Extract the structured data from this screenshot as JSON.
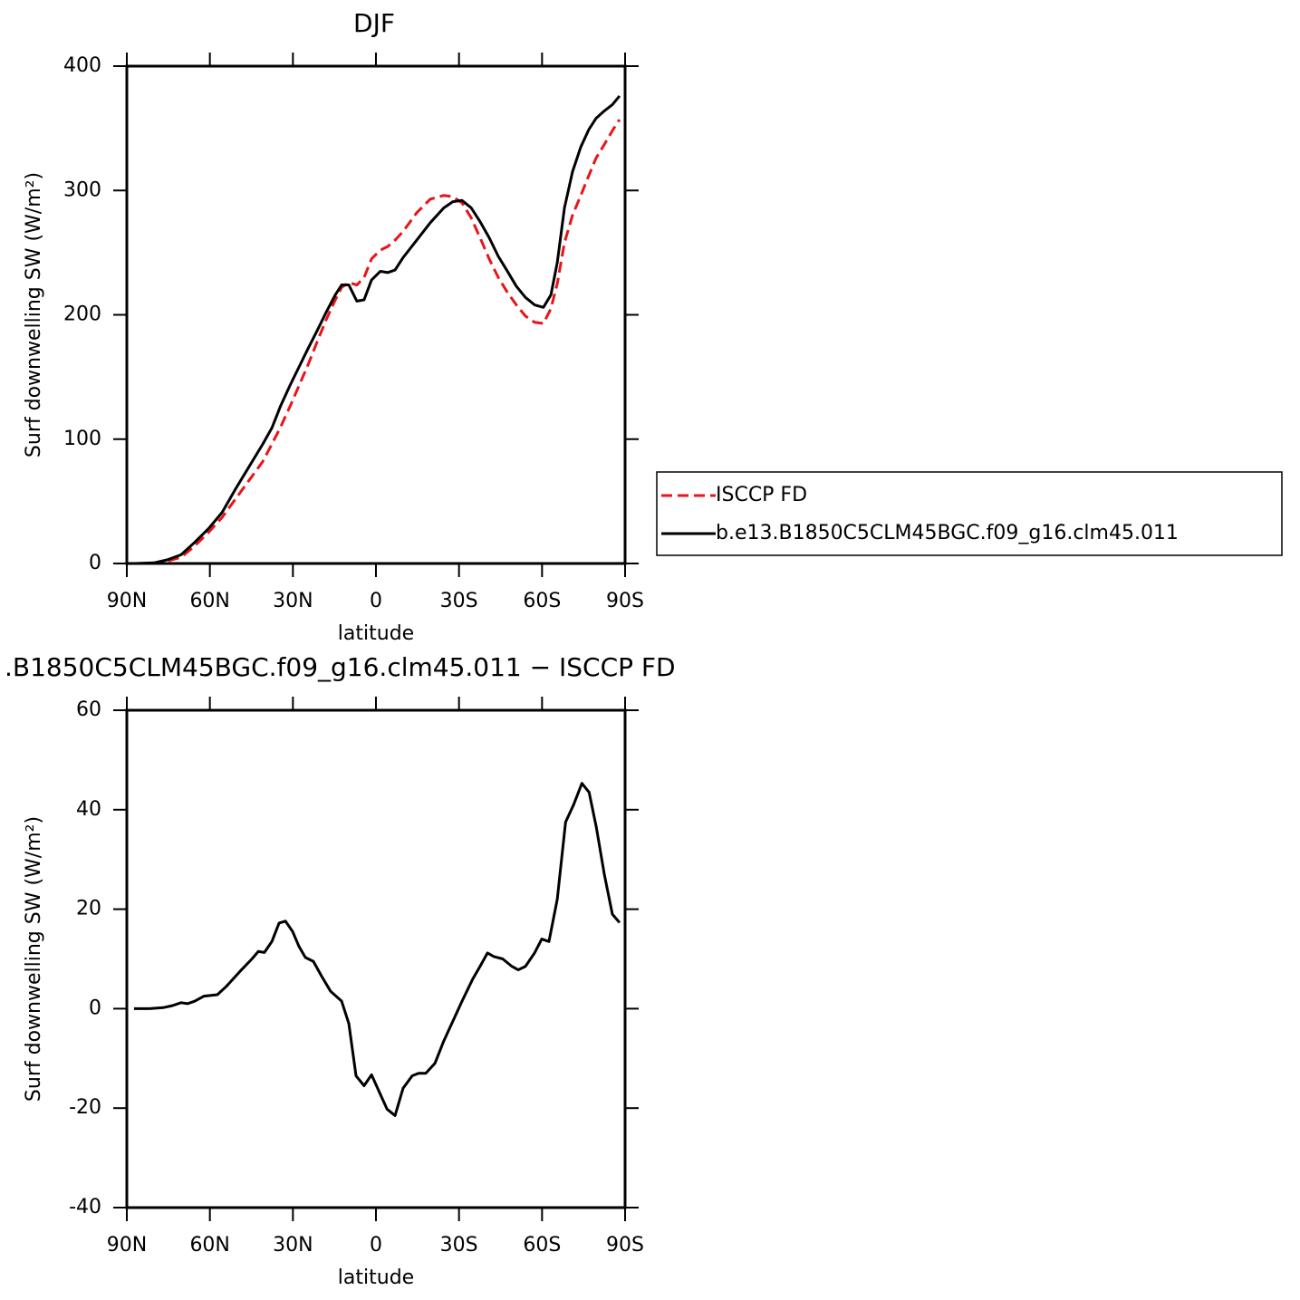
{
  "chart_data": [
    {
      "type": "line",
      "title": "DJF",
      "xlabel": "latitude",
      "ylabel": "Surf downwelling SW (W/m²)",
      "x": [
        86.7,
        80.2,
        75.3,
        70.4,
        65.5,
        60.5,
        55.6,
        50.7,
        45.8,
        40.9,
        37.6,
        34.4,
        31.1,
        27.8,
        24.5,
        21.3,
        18.0,
        14.7,
        12.4,
        9.8,
        6.9,
        4.3,
        1.6,
        -1.6,
        -4.3,
        -6.9,
        -9.8,
        -14.7,
        -19.6,
        -24.5,
        -27.8,
        -31.1,
        -34.4,
        -37.6,
        -40.9,
        -44.2,
        -47.5,
        -50.7,
        -54.0,
        -57.3,
        -60.5,
        -63.2,
        -65.5,
        -68.1,
        -71.0,
        -74.0,
        -76.9,
        -79.5,
        -82.5,
        -85.4,
        -88.0
      ],
      "series": [
        {
          "name": "ISCCP FD",
          "color": "#e8141a",
          "dash": true,
          "values": [
            0,
            0.3,
            2,
            5,
            14,
            25,
            37,
            52,
            67,
            82,
            96,
            110,
            126,
            143,
            160,
            178,
            196,
            212,
            222,
            226,
            224,
            230,
            245,
            252,
            255,
            260,
            267,
            282,
            293,
            296,
            295,
            290,
            278,
            262,
            245,
            230,
            218,
            208,
            199,
            194,
            193,
            205,
            225,
            258,
            280,
            296,
            312,
            326,
            337,
            348,
            357
          ]
        },
        {
          "name": "b.e13.B1850C5CLM45BGC.f09_g16.clm45.011",
          "color": "#000000",
          "dash": false,
          "values": [
            0,
            0.5,
            3,
            7,
            17,
            28,
            41,
            60,
            78,
            96,
            109,
            127,
            143,
            158,
            173,
            187,
            202,
            216,
            224,
            224,
            211,
            212,
            228,
            235,
            234,
            236,
            246,
            260,
            274,
            286,
            291,
            292,
            286,
            275,
            262,
            247,
            235,
            223,
            214,
            208,
            206,
            216,
            242,
            286,
            315,
            335,
            349,
            358,
            364,
            369,
            376
          ]
        }
      ],
      "xlim": [
        90,
        -90
      ],
      "xticks": [
        {
          "value": 90,
          "label": "90N"
        },
        {
          "value": 60,
          "label": "60N"
        },
        {
          "value": 30,
          "label": "30N"
        },
        0,
        {
          "value": -30,
          "label": "30S"
        },
        {
          "value": -60,
          "label": "60S"
        },
        {
          "value": -90,
          "label": "90S"
        }
      ],
      "ylim": [
        0,
        400
      ],
      "yticks": [
        0,
        100,
        200,
        300,
        400
      ],
      "legend": "right"
    },
    {
      "type": "line",
      "title": ".B1850C5CLM45BGC.f09_g16.clm45.011 − ISCCP FD",
      "xlabel": "latitude",
      "ylabel": "Surf downwelling SW (W/m²)",
      "x": [
        87.4,
        81.8,
        76.9,
        73.6,
        70.4,
        68.1,
        65.5,
        62.2,
        57.3,
        54.0,
        49.1,
        44.8,
        42.5,
        40.3,
        37.6,
        35.0,
        32.7,
        30.1,
        27.8,
        25.5,
        22.6,
        19.6,
        16.4,
        12.4,
        9.8,
        7.2,
        4.3,
        1.6,
        -1.0,
        -4.0,
        -6.9,
        -9.8,
        -13.1,
        -15.4,
        -18.0,
        -21.3,
        -24.5,
        -27.8,
        -31.1,
        -35.0,
        -37.6,
        -40.3,
        -42.5,
        -45.8,
        -49.1,
        -51.4,
        -54.0,
        -57.3,
        -59.9,
        -62.5,
        -65.5,
        -68.5,
        -71.4,
        -74.4,
        -77.0,
        -79.6,
        -82.5,
        -85.4,
        -88.0
      ],
      "values": [
        0,
        0,
        0.2,
        0.6,
        1.2,
        1,
        1.5,
        2.5,
        2.8,
        4.5,
        7.5,
        10,
        11.5,
        11.3,
        13.5,
        17.2,
        17.6,
        15.5,
        12.5,
        10.3,
        9.5,
        6.5,
        3.5,
        1.5,
        -3,
        -13.5,
        -15.5,
        -13.3,
        -16.5,
        -20.2,
        -21.5,
        -16,
        -13.5,
        -13,
        -13,
        -11,
        -6.5,
        -2.5,
        1.5,
        6,
        8.5,
        11.2,
        10.5,
        10,
        8.5,
        7.8,
        8.5,
        11.2,
        14,
        13.5,
        22,
        37.5,
        41,
        45.3,
        43.5,
        36.5,
        27,
        19,
        17.3
      ],
      "color": "#000000",
      "xlim": [
        90,
        -90
      ],
      "xticks": [
        {
          "value": 90,
          "label": "90N"
        },
        {
          "value": 60,
          "label": "60N"
        },
        {
          "value": 30,
          "label": "30N"
        },
        0,
        {
          "value": -30,
          "label": "30S"
        },
        {
          "value": -60,
          "label": "60S"
        },
        {
          "value": -90,
          "label": "90S"
        }
      ],
      "ylim": [
        -40,
        60
      ],
      "yticks": [
        -40,
        -20,
        0,
        20,
        40,
        60
      ]
    }
  ]
}
